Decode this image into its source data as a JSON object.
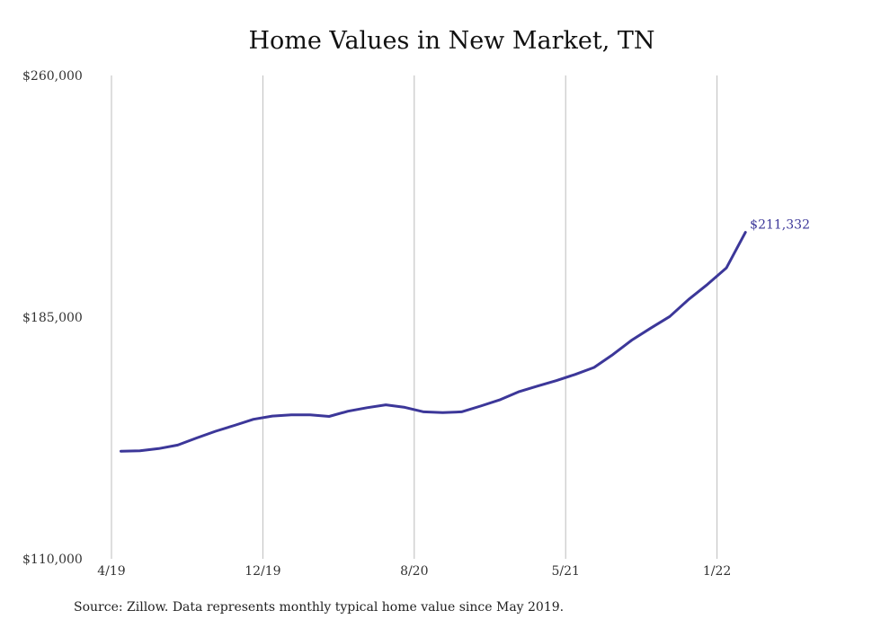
{
  "chart_data": {
    "type": "line",
    "title": "Home Values in New Market, TN",
    "xlabel": "",
    "ylabel": "",
    "x_ticks": [
      {
        "label": "4/19",
        "x": 0
      },
      {
        "label": "12/19",
        "x": 8
      },
      {
        "label": "8/20",
        "x": 16
      },
      {
        "label": "5/21",
        "x": 24
      },
      {
        "label": "1/22",
        "x": 32
      }
    ],
    "y_ticks": [
      "$110,000",
      "$185,000",
      "$260,000"
    ],
    "ylim": [
      110000,
      260000
    ],
    "xlim": [
      0,
      33.5
    ],
    "grid": "vertical",
    "series": [
      {
        "color": "#3c3799",
        "x": [
          0.5,
          1.5,
          2.5,
          3.5,
          4.5,
          5.5,
          6.5,
          7.5,
          8.5,
          9.5,
          10.5,
          11.5,
          12.5,
          13.5,
          14.5,
          15.5,
          16.5,
          17.5,
          18.5,
          19.5,
          20.5,
          21.5,
          22.5,
          23.5,
          24.5,
          25.5,
          26.5,
          27.5,
          28.5,
          29.5,
          30.5,
          31.5,
          32.5,
          33.5
        ],
        "values": [
          143400,
          143500,
          144200,
          145300,
          147500,
          149600,
          151400,
          153300,
          154300,
          154700,
          154700,
          154200,
          155800,
          156900,
          157800,
          157000,
          155600,
          155400,
          155600,
          157400,
          159300,
          161800,
          163600,
          165300,
          167200,
          169400,
          173400,
          177900,
          181600,
          185200,
          190500,
          195200,
          200300,
          211332
        ]
      }
    ],
    "annotations": [
      {
        "text": "$211,332",
        "x": 33.5,
        "y": 211332
      }
    ]
  },
  "footer": {
    "source_note": "Source: Zillow. Data represents monthly typical home value since May 2019."
  }
}
